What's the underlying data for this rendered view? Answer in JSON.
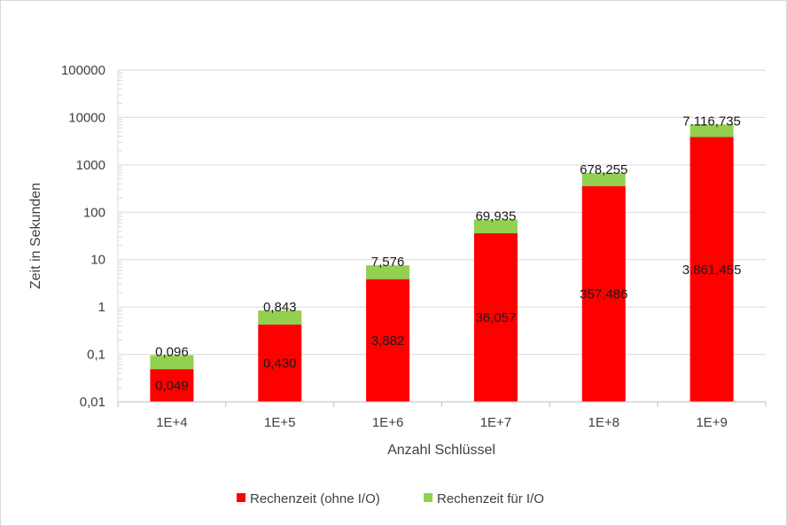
{
  "chart_data": {
    "type": "bar",
    "stacked": true,
    "scale": "log",
    "categories": [
      "1E+4",
      "1E+5",
      "1E+6",
      "1E+7",
      "1E+8",
      "1E+9"
    ],
    "series": [
      {
        "name": "Rechenzeit (ohne I/O)",
        "color": "#ff0000",
        "values": [
          0.049,
          0.43,
          3.882,
          36.057,
          357.486,
          3861.455
        ],
        "labels": [
          "0,049",
          "0,430",
          "3,882",
          "36,057",
          "357,486",
          "3.861,455"
        ]
      },
      {
        "name": "Rechenzeit für I/O",
        "color": "#92d050",
        "values": [
          0.047,
          0.413,
          3.694,
          33.878,
          320.769,
          3255.28
        ]
      }
    ],
    "totals": {
      "values": [
        0.096,
        0.843,
        7.576,
        69.935,
        678.255,
        7116.735
      ],
      "labels": [
        "0,096",
        "0,843",
        "7,576",
        "69,935",
        "678,255",
        "7.116,735"
      ]
    },
    "y_ticks": [
      "0,01",
      "0,1",
      "1",
      "10",
      "100",
      "1000",
      "10000",
      "100000"
    ],
    "ylim": [
      0.01,
      100000
    ],
    "xlabel": "Anzahl Schlüssel",
    "ylabel": "Zeit in Sekunden",
    "grid": true,
    "legend": "bottom"
  }
}
